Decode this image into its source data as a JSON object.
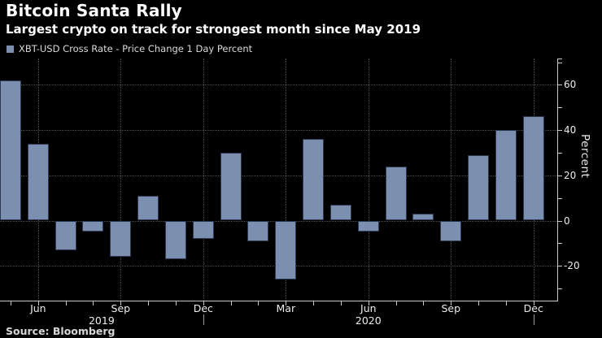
{
  "colors": {
    "background": "#000000",
    "bar_fill": "#7b90b1",
    "bar_border": "#2c3850",
    "axis": "#c8c8c8",
    "gridline": "#4f4f4f",
    "text_primary": "#ffffff",
    "text_secondary": "#ededed"
  },
  "chart_data": {
    "type": "bar",
    "title": "Bitcoin Santa Rally",
    "subtitle": "Largest crypto on track for strongest month since May 2019",
    "series_name": "XBT-USD Cross Rate - Price Change 1 Day Percent",
    "source": "Source: Bloomberg",
    "ylabel": "Percent",
    "xlabel": "",
    "ylim": [
      -35,
      72
    ],
    "y_major_ticks": [
      60,
      40,
      20,
      0,
      -20
    ],
    "y_minor_tick_step": 10,
    "grid": true,
    "legend_position": "top-left",
    "bar_color": "#7b90b1",
    "categories": [
      "May 2019",
      "Jun 2019",
      "Jul 2019",
      "Aug 2019",
      "Sep 2019",
      "Oct 2019",
      "Nov 2019",
      "Dec 2019",
      "Jan 2020",
      "Feb 2020",
      "Mar 2020",
      "Apr 2020",
      "May 2020",
      "Jun 2020",
      "Jul 2020",
      "Aug 2020",
      "Sep 2020",
      "Oct 2020",
      "Nov 2020",
      "Dec 2020"
    ],
    "values": [
      62,
      34,
      -13,
      -5,
      -16,
      11,
      -17,
      -8,
      30,
      -9,
      -26,
      36,
      7,
      -5,
      24,
      3,
      -9,
      29,
      40,
      46
    ],
    "x_quarter_labels": [
      {
        "index": 1,
        "label": "Jun"
      },
      {
        "index": 4,
        "label": "Sep"
      },
      {
        "index": 7,
        "label": "Dec"
      },
      {
        "index": 10,
        "label": "Mar"
      },
      {
        "index": 13,
        "label": "Jun"
      },
      {
        "index": 16,
        "label": "Sep"
      },
      {
        "index": 19,
        "label": "Dec"
      }
    ],
    "year_labels": [
      {
        "label": "2019",
        "end_index": 7
      },
      {
        "label": "2020",
        "end_index": 19
      }
    ]
  }
}
